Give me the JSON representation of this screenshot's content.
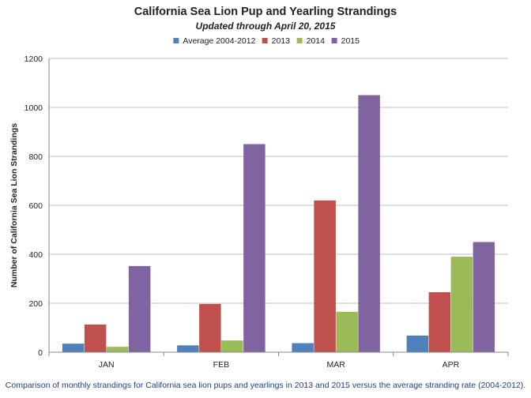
{
  "chart_data": {
    "type": "bar",
    "title": "California Sea Lion Pup and Yearling Strandings",
    "subtitle": "Updated through April 20, 2015",
    "ylabel": "Number of California Sea Lion Strandings",
    "xlabel": "",
    "categories": [
      "JAN",
      "FEB",
      "MAR",
      "APR"
    ],
    "series": [
      {
        "name": "Average 2004-2012",
        "color": "#4f81bd",
        "values": [
          35,
          28,
          37,
          68
        ]
      },
      {
        "name": "2013",
        "color": "#c0504d",
        "values": [
          113,
          197,
          620,
          245
        ]
      },
      {
        "name": "2014",
        "color": "#9bbb59",
        "values": [
          22,
          48,
          165,
          390
        ]
      },
      {
        "name": "2015",
        "color": "#8064a2",
        "values": [
          352,
          850,
          1050,
          450
        ]
      }
    ],
    "ylim": [
      0,
      1200
    ],
    "yticks": [
      0,
      200,
      400,
      600,
      800,
      1000,
      1200
    ],
    "grid": true,
    "legend_position": "top"
  },
  "caption": "Comparison of monthly strandings for California sea lion pups and yearlings in 2013 and 2015 versus the average stranding rate (2004-2012)."
}
